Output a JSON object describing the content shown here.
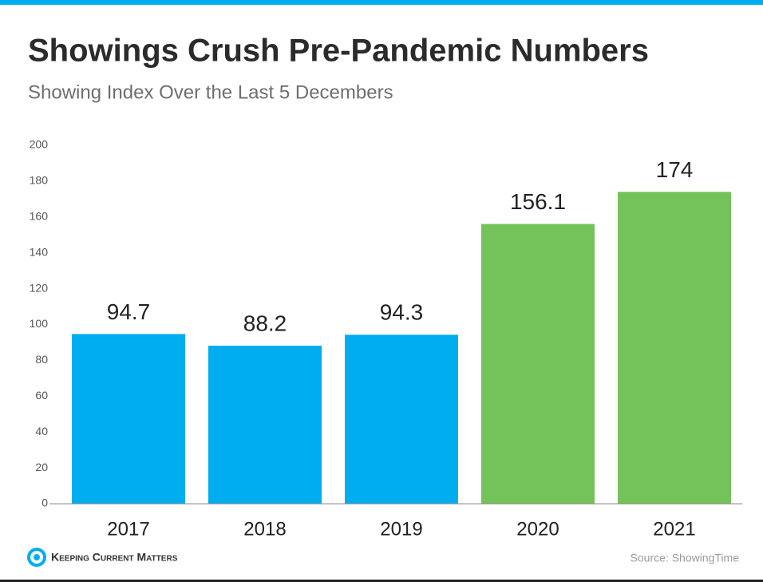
{
  "chart_data": {
    "type": "bar",
    "title": "Showings Crush Pre-Pandemic Numbers",
    "subtitle": "Showing Index Over the Last 5 Decembers",
    "categories": [
      "2017",
      "2018",
      "2019",
      "2020",
      "2021"
    ],
    "values": [
      94.7,
      88.2,
      94.3,
      156.1,
      174
    ],
    "colors": [
      "#00aeef",
      "#00aeef",
      "#00aeef",
      "#74c25a",
      "#74c25a"
    ],
    "ylim": [
      0,
      200
    ],
    "yticks": [
      0,
      20,
      40,
      60,
      80,
      100,
      120,
      140,
      160,
      180,
      200
    ],
    "grid": false,
    "brand": "Keeping Current Matters",
    "source": "Source: ShowingTime"
  }
}
